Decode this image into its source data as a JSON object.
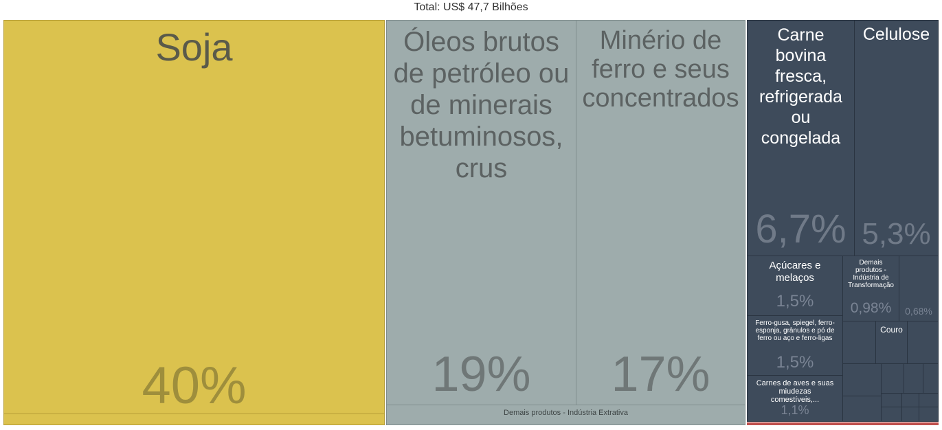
{
  "total_label": "Total: US$ 47,7 Bilhões",
  "colors": {
    "agropecuaria": "#dbc24e",
    "industria_extrativa": "#9eacac",
    "industria_transformacao": "#3e4b5b",
    "outros": "#c0504d"
  },
  "chart_data": {
    "type": "treemap",
    "total": "US$ 47,7 Bilhões",
    "items": [
      {
        "label": "Soja",
        "pct": "40%",
        "value": 40
      },
      {
        "label": "Óleos brutos de petróleo ou de minerais betuminosos, crus",
        "pct": "19%",
        "value": 19
      },
      {
        "label": "Minério de ferro e seus concentrados",
        "pct": "17%",
        "value": 17
      },
      {
        "label": "Demais produtos - Indústria Extrativa",
        "pct": "",
        "value": null
      },
      {
        "label": "Carne bovina fresca, refrigerada ou congelada",
        "pct": "6,7%",
        "value": 6.7
      },
      {
        "label": "Celulose",
        "pct": "5,3%",
        "value": 5.3
      },
      {
        "label": "Açúcares e melaços",
        "pct": "1,5%",
        "value": 1.5
      },
      {
        "label": "Demais produtos - Indústria de Transformação",
        "pct": "0,98%",
        "value": 0.98
      },
      {
        "label": "",
        "pct": "0,68%",
        "value": 0.68
      },
      {
        "label": "Ferro-gusa, spiegel, ferro-esponja, grânulos e pó de ferro ou aço e ferro-ligas",
        "pct": "1,5%",
        "value": 1.5
      },
      {
        "label": "Couro",
        "pct": "",
        "value": null
      },
      {
        "label": "Carnes de aves e suas miudezas comestíveis,...",
        "pct": "1,1%",
        "value": 1.1
      }
    ]
  }
}
